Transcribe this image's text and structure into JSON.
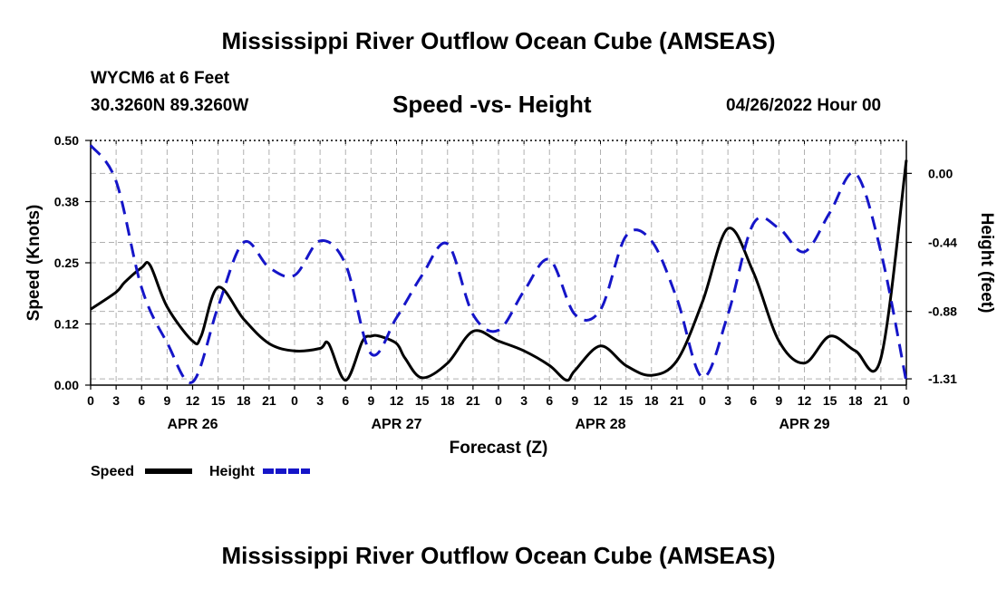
{
  "header": {
    "title": "Mississippi River Outflow Ocean Cube (AMSEAS)",
    "station": "WYCM6 at 6 Feet",
    "location": "30.3260N  89.3260W",
    "subtitle": "Speed -vs- Height",
    "datetime": "04/26/2022 Hour 00",
    "footer_title": "Mississippi River Outflow Ocean Cube (AMSEAS)"
  },
  "colors": {
    "speed": "#000000",
    "height": "#1515c8",
    "grid": "#b0b0b0"
  },
  "chart_data": {
    "type": "line",
    "xlabel": "Forecast (Z)",
    "ylabel_left": "Speed (Knots)",
    "ylabel_right": "Height (feet)",
    "xlim": [
      0,
      96
    ],
    "ylim_left": [
      0,
      0.5
    ],
    "ylim_right": [
      -1.35,
      0.21
    ],
    "x_ticks": [
      0,
      3,
      6,
      9,
      12,
      15,
      18,
      21,
      24,
      27,
      30,
      33,
      36,
      39,
      42,
      45,
      48,
      51,
      54,
      57,
      60,
      63,
      66,
      69,
      72,
      75,
      78,
      81,
      84,
      87,
      90,
      93,
      96
    ],
    "x_tick_labels": [
      "0",
      "3",
      "6",
      "9",
      "12",
      "15",
      "18",
      "21",
      "0",
      "3",
      "6",
      "9",
      "12",
      "15",
      "18",
      "21",
      "0",
      "3",
      "6",
      "9",
      "12",
      "15",
      "18",
      "21",
      "0",
      "3",
      "6",
      "9",
      "12",
      "15",
      "18",
      "21",
      "0"
    ],
    "day_labels": [
      {
        "x": 12,
        "label": "APR 26"
      },
      {
        "x": 36,
        "label": "APR 27"
      },
      {
        "x": 60,
        "label": "APR 28"
      },
      {
        "x": 84,
        "label": "APR 29"
      }
    ],
    "y_ticks_left": [
      0.0,
      0.125,
      0.25,
      0.375,
      0.5
    ],
    "y_tick_labels_left": [
      "0.00",
      "0.12",
      "0.25",
      "0.38",
      "0.50"
    ],
    "y_ticks_right": [
      0.0,
      -0.44,
      -0.88,
      -1.31
    ],
    "y_tick_labels_right": [
      "0.00",
      "-0.44",
      "-0.88",
      "-1.31"
    ],
    "grid": true,
    "legend": [
      {
        "label": "Speed",
        "style": "solid",
        "color": "#000000"
      },
      {
        "label": "Height",
        "style": "dashed",
        "color": "#1515c8"
      }
    ],
    "series": [
      {
        "name": "Speed",
        "axis": "left",
        "style": "solid",
        "x": [
          0,
          3,
          4,
          6,
          7,
          9,
          12,
          13,
          15,
          18,
          21,
          24,
          27,
          28,
          30,
          32,
          33,
          34,
          36,
          37,
          39,
          42,
          45,
          48,
          51,
          54,
          56,
          57,
          60,
          63,
          66,
          69,
          72,
          75,
          78,
          81,
          84,
          87,
          90,
          93,
          96
        ],
        "values": [
          0.155,
          0.19,
          0.21,
          0.24,
          0.245,
          0.16,
          0.09,
          0.1,
          0.2,
          0.135,
          0.085,
          0.07,
          0.075,
          0.085,
          0.01,
          0.09,
          0.1,
          0.1,
          0.085,
          0.055,
          0.015,
          0.045,
          0.11,
          0.09,
          0.07,
          0.04,
          0.01,
          0.03,
          0.08,
          0.04,
          0.02,
          0.05,
          0.17,
          0.32,
          0.23,
          0.09,
          0.045,
          0.1,
          0.07,
          0.055,
          0.46
        ]
      },
      {
        "name": "Height",
        "axis": "right",
        "style": "dashed",
        "x": [
          0,
          3,
          6,
          9,
          12,
          15,
          18,
          21,
          24,
          27,
          30,
          33,
          36,
          39,
          42,
          45,
          48,
          51,
          54,
          57,
          60,
          63,
          66,
          69,
          72,
          75,
          78,
          81,
          84,
          87,
          90,
          93,
          96
        ],
        "values": [
          0.18,
          -0.05,
          -0.73,
          -1.08,
          -1.33,
          -0.85,
          -0.44,
          -0.6,
          -0.65,
          -0.43,
          -0.58,
          -1.15,
          -0.92,
          -0.65,
          -0.45,
          -0.9,
          -1.0,
          -0.75,
          -0.55,
          -0.9,
          -0.87,
          -0.4,
          -0.43,
          -0.8,
          -1.3,
          -0.9,
          -0.32,
          -0.35,
          -0.5,
          -0.25,
          0.0,
          -0.5,
          -1.33
        ]
      }
    ]
  }
}
